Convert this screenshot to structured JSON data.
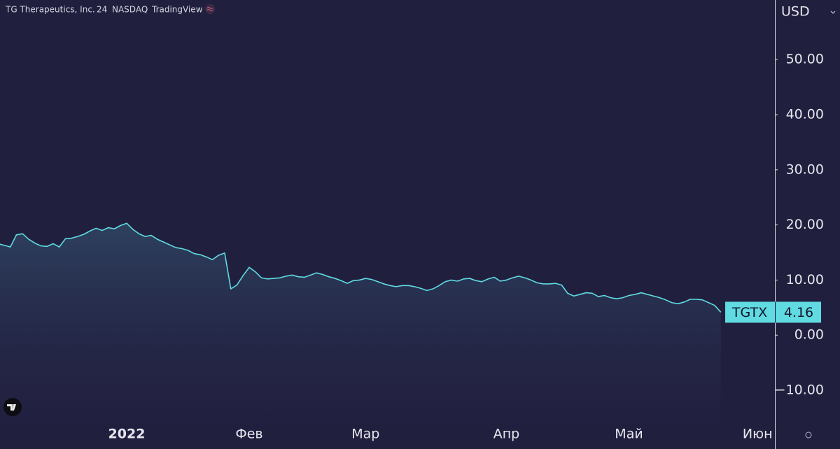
{
  "header": {
    "name": "TG Therapeutics, Inc.",
    "interval": "24",
    "exchange": "NASDAQ",
    "source": "TradingView"
  },
  "chart_data": {
    "type": "area",
    "y_axis_label": "USD",
    "categories": [
      null,
      null,
      null,
      null,
      null,
      null,
      null,
      null,
      null,
      null,
      null,
      null,
      null,
      null,
      null,
      null,
      null,
      null,
      null,
      null,
      null,
      "2022",
      null,
      null,
      null,
      null,
      null,
      null,
      null,
      null,
      null,
      null,
      null,
      null,
      null,
      null,
      null,
      null,
      null,
      null,
      null,
      "Фев",
      null,
      null,
      null,
      null,
      null,
      null,
      null,
      null,
      null,
      null,
      null,
      null,
      null,
      null,
      null,
      null,
      null,
      null,
      "Мар",
      null,
      null,
      null,
      null,
      null,
      null,
      null,
      null,
      null,
      null,
      null,
      null,
      null,
      null,
      null,
      null,
      null,
      null,
      null,
      null,
      null,
      null,
      "Апр",
      null,
      null,
      null,
      null,
      null,
      null,
      null,
      null,
      null,
      null,
      null,
      null,
      null,
      null,
      null,
      null,
      null,
      null,
      null,
      "Май",
      null,
      null,
      null,
      null,
      null,
      null,
      null,
      null,
      null,
      null,
      null,
      null,
      null,
      null,
      null,
      null,
      null,
      null,
      null,
      null,
      "Июн"
    ],
    "series": [
      {
        "name": "TGTX",
        "color": "#5fdbe1",
        "values": [
          16.6,
          16.3,
          16.0,
          18.2,
          18.4,
          17.4,
          16.7,
          16.2,
          16.1,
          16.6,
          16.0,
          17.5,
          17.6,
          17.9,
          18.3,
          18.9,
          19.4,
          19.0,
          19.5,
          19.3,
          19.9,
          20.3,
          19.2,
          18.4,
          17.9,
          18.1,
          17.4,
          16.9,
          16.4,
          15.9,
          15.7,
          15.4,
          14.8,
          14.6,
          14.2,
          13.7,
          14.5,
          14.9,
          8.4,
          9.1,
          10.8,
          12.3,
          11.5,
          10.4,
          10.2,
          10.3,
          10.4,
          10.7,
          10.9,
          10.6,
          10.5,
          10.9,
          11.3,
          11.0,
          10.6,
          10.3,
          9.9,
          9.4,
          9.9,
          10.0,
          10.3,
          10.1,
          9.7,
          9.3,
          9.0,
          8.8,
          9.0,
          9.0,
          8.8,
          8.5,
          8.1,
          8.4,
          9.0,
          9.7,
          10.0,
          9.8,
          10.2,
          10.3,
          9.9,
          9.7,
          10.2,
          10.5,
          9.8,
          10.0,
          10.4,
          10.7,
          10.4,
          10.0,
          9.5,
          9.3,
          9.3,
          9.4,
          9.1,
          7.6,
          7.1,
          7.4,
          7.7,
          7.6,
          7.0,
          7.2,
          6.8,
          6.6,
          6.8,
          7.2,
          7.4,
          7.7,
          7.4,
          7.1,
          6.8,
          6.4,
          5.9,
          5.7,
          6.0,
          6.5,
          6.5,
          6.4,
          5.9,
          5.4,
          4.16,
          null,
          null,
          null,
          null,
          null,
          null
        ]
      }
    ],
    "ylim": [
      -15.7,
      60.8
    ],
    "yticks": [
      {
        "value": -10,
        "label": "−10.00"
      },
      {
        "value": 0,
        "label": "0.00"
      },
      {
        "value": 10,
        "label": "10.00"
      },
      {
        "value": 20,
        "label": "20.00"
      },
      {
        "value": 30,
        "label": "30.00"
      },
      {
        "value": 40,
        "label": "40.00"
      },
      {
        "value": 50,
        "label": "50.00"
      }
    ]
  }
}
